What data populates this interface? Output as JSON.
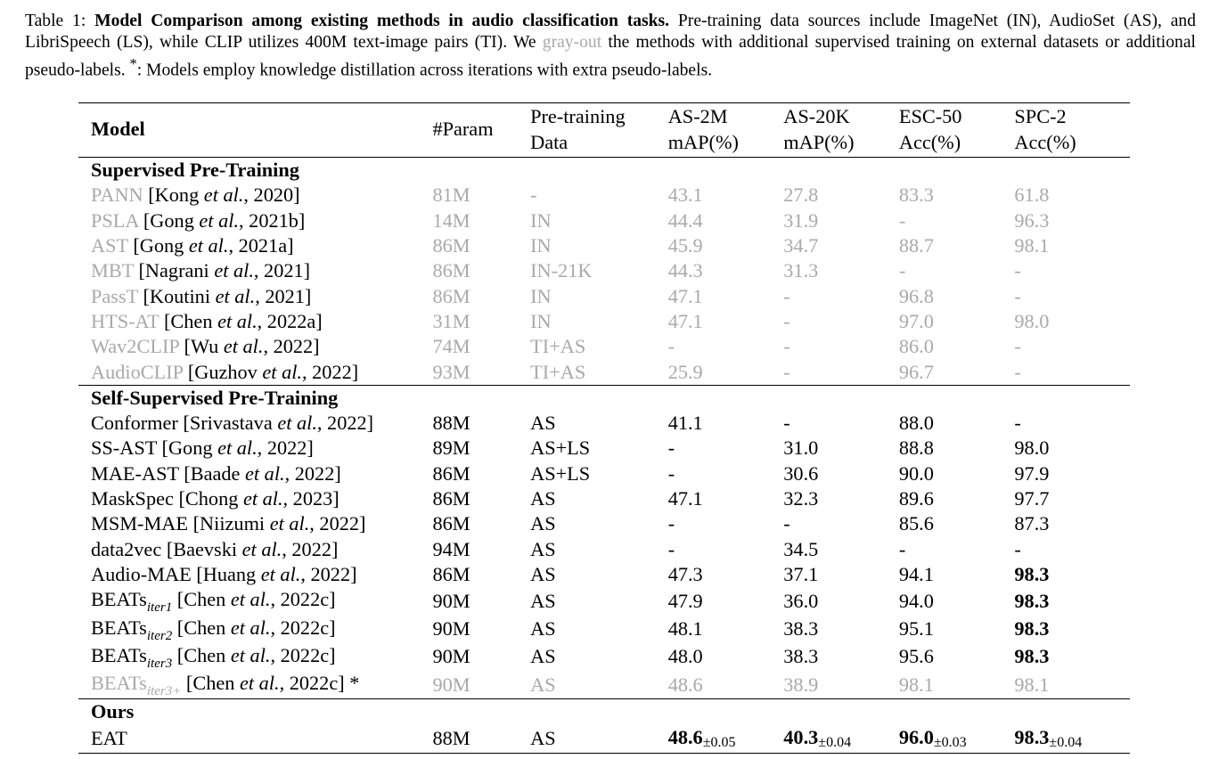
{
  "caption": {
    "label": "Table 1:",
    "title": "Model Comparison among existing methods in audio classification tasks.",
    "text_1": "Pre-training data sources include ImageNet (IN), AudioSet (AS), and LibriSpeech (LS), while CLIP utilizes 400M text-image pairs (TI). We",
    "gray_word": "gray-out",
    "text_2": "the methods with additional supervised training on external datasets or additional pseudo-labels.",
    "star": "*",
    "text_3": ": Models employ knowledge distillation across iterations with extra pseudo-labels."
  },
  "header": {
    "model": "Model",
    "param": "#Param",
    "data_1": "Pre-training",
    "data_2": "Data",
    "as2m_1": "AS-2M",
    "as2m_2": "mAP(%)",
    "as20k_1": "AS-20K",
    "as20k_2": "mAP(%)",
    "esc_1": "ESC-50",
    "esc_2": "Acc(%)",
    "spc_1": "SPC-2",
    "spc_2": "Acc(%)"
  },
  "sections": {
    "supervised": "Supervised Pre-Training",
    "self_supervised": "Self-Supervised Pre-Training",
    "ours": "Ours"
  },
  "supervised_rows": [
    {
      "name": "PANN",
      "ref_a": "[Kong ",
      "ref_em": "et al.",
      "ref_b": ", 2020]",
      "param": "81M",
      "data": "-",
      "as2m": "43.1",
      "as20k": "27.8",
      "esc": "83.3",
      "spc": "61.8"
    },
    {
      "name": "PSLA",
      "ref_a": "[Gong ",
      "ref_em": "et al.",
      "ref_b": ", 2021b]",
      "param": "14M",
      "data": "IN",
      "as2m": "44.4",
      "as20k": "31.9",
      "esc": "-",
      "spc": "96.3"
    },
    {
      "name": "AST",
      "ref_a": "[Gong ",
      "ref_em": "et al.",
      "ref_b": ", 2021a]",
      "param": "86M",
      "data": "IN",
      "as2m": "45.9",
      "as20k": "34.7",
      "esc": "88.7",
      "spc": "98.1"
    },
    {
      "name": "MBT",
      "ref_a": "[Nagrani ",
      "ref_em": "et al.",
      "ref_b": ", 2021]",
      "param": "86M",
      "data": "IN-21K",
      "as2m": "44.3",
      "as20k": "31.3",
      "esc": "-",
      "spc": "-"
    },
    {
      "name": "PassT",
      "ref_a": "[Koutini ",
      "ref_em": "et al.",
      "ref_b": ", 2021]",
      "param": "86M",
      "data": "IN",
      "as2m": "47.1",
      "as20k": "-",
      "esc": "96.8",
      "spc": "-"
    },
    {
      "name": "HTS-AT",
      "ref_a": "[Chen ",
      "ref_em": "et al.",
      "ref_b": ", 2022a]",
      "param": "31M",
      "data": "IN",
      "as2m": "47.1",
      "as20k": "-",
      "esc": "97.0",
      "spc": "98.0"
    },
    {
      "name": "Wav2CLIP",
      "ref_a": "[Wu ",
      "ref_em": "et al.",
      "ref_b": ", 2022]",
      "param": "74M",
      "data": "TI+AS",
      "as2m": "-",
      "as20k": "-",
      "esc": "86.0",
      "spc": "-"
    },
    {
      "name": "AudioCLIP",
      "ref_a": "[Guzhov ",
      "ref_em": "et al.",
      "ref_b": ", 2022]",
      "param": "93M",
      "data": "TI+AS",
      "as2m": "25.9",
      "as20k": "-",
      "esc": "96.7",
      "spc": "-"
    }
  ],
  "self_rows": [
    {
      "name": "Conformer",
      "ref_a": "[Srivastava ",
      "ref_em": "et al.",
      "ref_b": ", 2022]",
      "param": "88M",
      "data": "AS",
      "as2m": "41.1",
      "as20k": "-",
      "esc": "88.0",
      "spc": "-"
    },
    {
      "name": "SS-AST",
      "ref_a": "[Gong ",
      "ref_em": "et al.",
      "ref_b": ", 2022]",
      "param": "89M",
      "data": "AS+LS",
      "as2m": "-",
      "as20k": "31.0",
      "esc": "88.8",
      "spc": "98.0"
    },
    {
      "name": "MAE-AST",
      "ref_a": "[Baade ",
      "ref_em": "et al.",
      "ref_b": ", 2022]",
      "param": "86M",
      "data": "AS+LS",
      "as2m": "-",
      "as20k": "30.6",
      "esc": "90.0",
      "spc": "97.9"
    },
    {
      "name": "MaskSpec",
      "ref_a": "[Chong ",
      "ref_em": "et al.",
      "ref_b": ", 2023]",
      "param": "86M",
      "data": "AS",
      "as2m": "47.1",
      "as20k": "32.3",
      "esc": "89.6",
      "spc": "97.7"
    },
    {
      "name": "MSM-MAE",
      "ref_a": "[Niizumi ",
      "ref_em": "et al.",
      "ref_b": ", 2022]",
      "param": "86M",
      "data": "AS",
      "as2m": "-",
      "as20k": "-",
      "esc": "85.6",
      "spc": "87.3"
    },
    {
      "name": "data2vec",
      "ref_a": "[Baevski ",
      "ref_em": "et al.",
      "ref_b": ", 2022]",
      "param": "94M",
      "data": "AS",
      "as2m": "-",
      "as20k": "34.5",
      "esc": "-",
      "spc": "-"
    },
    {
      "name": "Audio-MAE",
      "ref_a": "[Huang ",
      "ref_em": "et al.",
      "ref_b": ", 2022]",
      "param": "86M",
      "data": "AS",
      "as2m": "47.3",
      "as20k": "37.1",
      "esc": "94.1",
      "spc": "98.3"
    },
    {
      "name": "BEATs",
      "sub": "iter1",
      "ref_a": "[Chen ",
      "ref_em": "et al.",
      "ref_b": ", 2022c]",
      "param": "90M",
      "data": "AS",
      "as2m": "47.9",
      "as20k": "36.0",
      "esc": "94.0",
      "spc": "98.3"
    },
    {
      "name": "BEATs",
      "sub": "iter2",
      "ref_a": "[Chen ",
      "ref_em": "et al.",
      "ref_b": ", 2022c]",
      "param": "90M",
      "data": "AS",
      "as2m": "48.1",
      "as20k": "38.3",
      "esc": "95.1",
      "spc": "98.3"
    },
    {
      "name": "BEATs",
      "sub": "iter3",
      "ref_a": "[Chen ",
      "ref_em": "et al.",
      "ref_b": ", 2022c]",
      "param": "90M",
      "data": "AS",
      "as2m": "48.0",
      "as20k": "38.3",
      "esc": "95.6",
      "spc": "98.3"
    },
    {
      "name": "BEATs",
      "sub": "iter3+",
      "ref_a": "[Chen ",
      "ref_em": "et al.",
      "ref_b": ", 2022c]",
      "star": " *",
      "param": "90M",
      "data": "AS",
      "as2m": "48.6",
      "as20k": "38.9",
      "esc": "98.1",
      "spc": "98.1"
    }
  ],
  "ours_row": {
    "name": "EAT",
    "param": "88M",
    "data": "AS",
    "as2m": "48.6",
    "as2m_pm": "±0.05",
    "as20k": "40.3",
    "as20k_pm": "±0.04",
    "esc": "96.0",
    "esc_pm": "±0.03",
    "spc": "98.3",
    "spc_pm": "±0.04"
  }
}
